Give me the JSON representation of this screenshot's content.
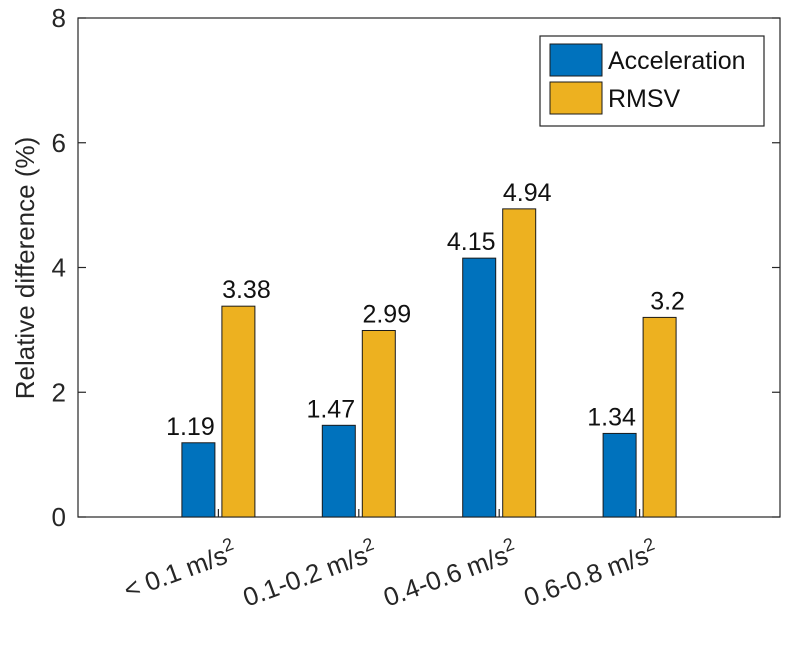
{
  "chart_data": {
    "type": "bar",
    "title": "",
    "xlabel": "",
    "ylabel": "Relative difference (%)",
    "ylim": [
      0,
      8
    ],
    "yticks": [
      "0",
      "2",
      "4",
      "6",
      "8"
    ],
    "categories": [
      {
        "base": "< 0.1 m/s",
        "sup": "2"
      },
      {
        "base": "0.1-0.2 m/s",
        "sup": "2"
      },
      {
        "base": "0.4-0.6 m/s",
        "sup": "2"
      },
      {
        "base": "0.6-0.8 m/s",
        "sup": "2"
      }
    ],
    "series": [
      {
        "name": "Acceleration",
        "color": "#0072BD",
        "values": [
          1.19,
          1.47,
          4.15,
          1.34
        ],
        "labels": [
          "1.19",
          "1.47",
          "4.15",
          "1.34"
        ]
      },
      {
        "name": "RMSV",
        "color": "#EDB120",
        "values": [
          3.38,
          2.99,
          4.94,
          3.2
        ],
        "labels": [
          "3.38",
          "2.99",
          "4.94",
          "3.2"
        ]
      }
    ],
    "legend_position": "top-right",
    "grid": false
  }
}
